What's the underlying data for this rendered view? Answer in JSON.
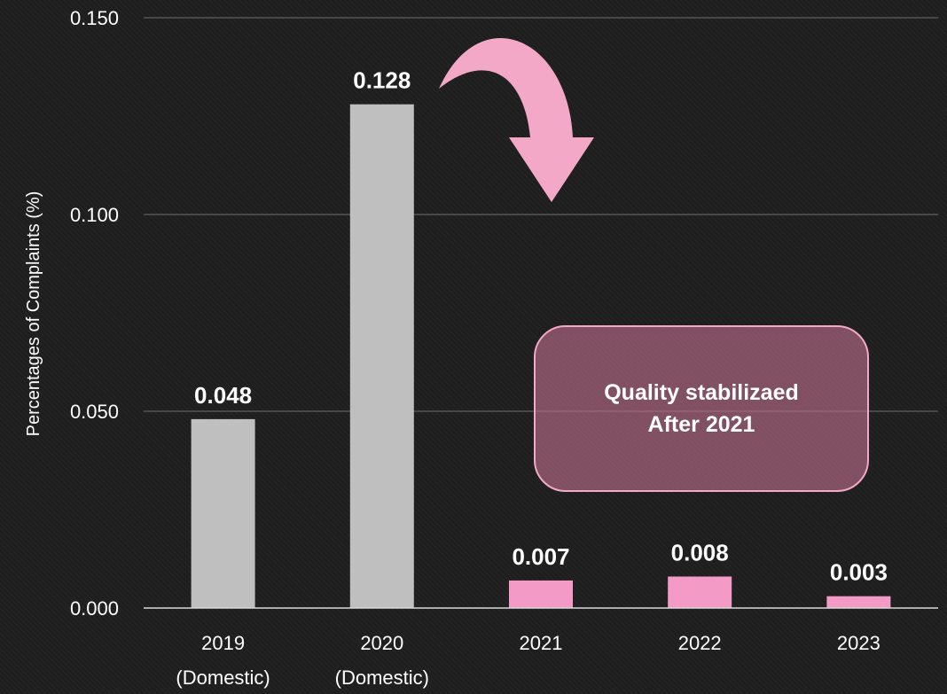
{
  "chart_data": {
    "type": "bar",
    "title": "",
    "xlabel": "",
    "ylabel": "Percentages of Complaints (%)",
    "ylim": [
      0,
      0.15
    ],
    "yticks": [
      "0.000",
      "0.050",
      "0.100",
      "0.150"
    ],
    "grid": true,
    "categories": [
      {
        "line1": "2019",
        "line2": "(Domestic)"
      },
      {
        "line1": "2020",
        "line2": "(Domestic)"
      },
      {
        "line1": "2021",
        "line2": ""
      },
      {
        "line1": "2022",
        "line2": ""
      },
      {
        "line1": "2023",
        "line2": ""
      }
    ],
    "values": [
      0.048,
      0.128,
      0.007,
      0.008,
      0.003
    ],
    "value_labels": [
      "0.048",
      "0.128",
      "0.007",
      "0.008",
      "0.003"
    ],
    "bar_colors": [
      "#bfbfbf",
      "#bfbfbf",
      "#f49ac6",
      "#f49ac6",
      "#f49ac6"
    ],
    "annotation": {
      "line1": "Quality stabilizaed",
      "line2": "After 2021",
      "box_color": "#be6e8c",
      "border_color": "#f4a8c8",
      "arrow_color": "#f4a8c8"
    }
  }
}
